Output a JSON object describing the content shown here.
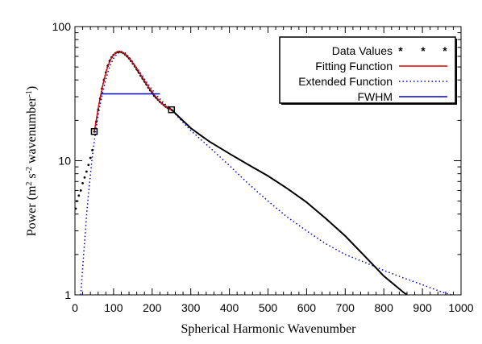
{
  "chart_data": {
    "type": "line",
    "title": "",
    "xlabel": "Spherical Harmonic Wavenumber",
    "ylabel_main": "Power (m",
    "ylabel_sup1": "2",
    "ylabel_mid1": " s",
    "ylabel_sup2": "-2",
    "ylabel_mid2": " wavenumber",
    "ylabel_sup3": "-1",
    "ylabel_end": ")",
    "xlim": [
      0,
      1000
    ],
    "ylim": [
      1,
      100
    ],
    "yscale": "log",
    "grid": false,
    "legend_position": "top-right",
    "x_ticks": [
      0,
      100,
      200,
      300,
      400,
      500,
      600,
      700,
      800,
      900,
      1000
    ],
    "x_tick_labels": [
      "0",
      "100",
      "200",
      "300",
      "400",
      "500",
      "600",
      "700",
      "800",
      "900",
      "1000"
    ],
    "y_major_ticks": [
      1,
      10,
      100
    ],
    "y_tick_labels": [
      "1",
      "10",
      "100"
    ],
    "series": [
      {
        "name": "Data Values",
        "color": "#000000",
        "style": "dotted-points",
        "x": [
          2,
          5,
          10,
          15,
          20,
          25,
          30,
          35,
          40,
          45,
          50,
          55,
          60,
          65,
          70,
          75,
          80,
          85,
          90,
          95,
          100,
          105,
          110,
          115,
          120,
          125,
          130,
          135,
          140,
          145,
          150,
          155,
          160,
          165,
          170,
          175,
          180,
          185,
          190,
          195,
          200,
          205,
          210,
          215,
          220,
          225,
          230,
          235,
          240,
          245,
          250
        ],
        "y": [
          4.4,
          5.0,
          5.5,
          6.0,
          6.8,
          7.5,
          8.3,
          9.3,
          10.5,
          12.0,
          16.5,
          19.5,
          24.0,
          29.0,
          34.5,
          40.0,
          45.5,
          51.0,
          55.5,
          59.0,
          61.5,
          63.5,
          64.5,
          65.0,
          64.5,
          63.5,
          62.0,
          60.0,
          58.0,
          55.5,
          53.0,
          50.5,
          48.0,
          45.5,
          43.0,
          41.0,
          39.0,
          37.0,
          35.0,
          33.5,
          32.0,
          30.5,
          29.5,
          28.5,
          27.5,
          26.8,
          26.0,
          25.3,
          24.8,
          24.5,
          24.0
        ]
      },
      {
        "name": "Fitting Function",
        "color": "#dd0000",
        "style": "solid",
        "x": [
          50,
          55,
          60,
          65,
          70,
          75,
          80,
          85,
          90,
          95,
          100,
          105,
          110,
          115,
          120,
          125,
          130,
          135,
          140,
          145,
          150,
          160,
          170,
          180,
          190,
          200,
          210,
          220,
          230,
          240,
          250
        ],
        "y": [
          16.5,
          20.0,
          24.5,
          29.0,
          34.0,
          39.5,
          45.0,
          50.0,
          54.5,
          58.5,
          61.5,
          63.5,
          64.8,
          65.2,
          64.8,
          63.8,
          62.2,
          60.3,
          58.2,
          55.9,
          53.5,
          48.6,
          43.8,
          39.5,
          35.7,
          32.5,
          29.8,
          27.6,
          25.9,
          24.8,
          24.0
        ]
      },
      {
        "name": "Extended Function",
        "color": "#0000cc",
        "style": "dotted",
        "x": [
          15,
          20,
          25,
          30,
          35,
          40,
          45,
          50,
          55,
          60,
          65,
          70,
          80,
          90,
          100,
          110,
          120,
          130,
          140,
          150,
          170,
          190,
          210,
          230,
          250,
          275,
          300,
          350,
          400,
          450,
          500,
          550,
          600,
          650,
          700,
          750,
          800,
          850,
          900,
          950,
          975
        ],
        "y": [
          1.0,
          1.6,
          2.5,
          3.9,
          5.7,
          7.9,
          10.8,
          14.0,
          17.6,
          21.6,
          26.0,
          30.5,
          40.5,
          50.5,
          58.0,
          63.0,
          65.0,
          63.5,
          59.5,
          54.5,
          45.0,
          37.0,
          31.0,
          27.0,
          24.0,
          20.0,
          16.8,
          12.5,
          9.2,
          6.7,
          5.0,
          3.8,
          3.0,
          2.4,
          2.0,
          1.75,
          1.52,
          1.34,
          1.19,
          1.05,
          1.0
        ]
      },
      {
        "name": "FWHM",
        "color": "#0000cc",
        "style": "solid",
        "x": [
          67,
          220
        ],
        "y": [
          31.5,
          31.5
        ]
      }
    ],
    "tail_data": {
      "x": [
        250,
        275,
        300,
        325,
        350,
        400,
        450,
        500,
        550,
        600,
        650,
        700,
        750,
        800,
        850,
        860
      ],
      "y": [
        24.0,
        20.5,
        17.5,
        15.5,
        13.8,
        11.3,
        9.3,
        7.7,
        6.2,
        4.9,
        3.7,
        2.75,
        1.95,
        1.38,
        1.05,
        1.0
      ]
    },
    "markers": [
      {
        "x": 50,
        "y": 16.5
      },
      {
        "x": 250,
        "y": 24.0
      }
    ]
  }
}
